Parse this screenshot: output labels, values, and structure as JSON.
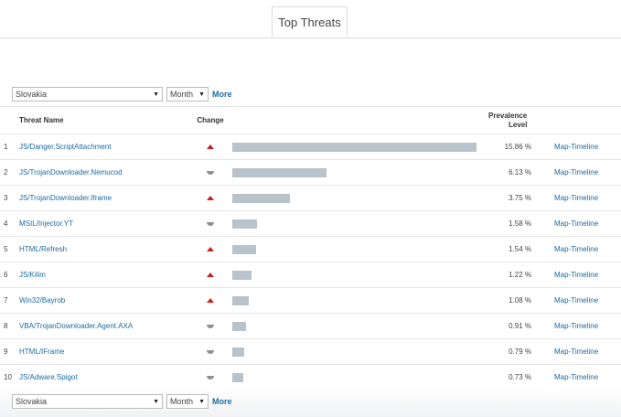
{
  "tabs": {
    "active_label": "Top Threats"
  },
  "filters": {
    "country": "Slovakia",
    "period": "Month",
    "more_label": "More"
  },
  "table": {
    "headers": {
      "name": "Threat Name",
      "change": "Change",
      "prevalence_line1": "Prevalence",
      "prevalence_line2": "Level"
    },
    "max_prevalence": 15.86,
    "rows": [
      {
        "rank": "1",
        "name": "JS/Danger.ScriptAttachment",
        "change": "up",
        "prevalence": 15.86,
        "pct": "15.86 %",
        "link": "Map-Timeline"
      },
      {
        "rank": "2",
        "name": "JS/TrojanDownloader.Nemucod",
        "change": "down",
        "prevalence": 6.13,
        "pct": "6.13 %",
        "link": "Map-Timeline"
      },
      {
        "rank": "3",
        "name": "JS/TrojanDownloader.Iframe",
        "change": "up",
        "prevalence": 3.75,
        "pct": "3.75 %",
        "link": "Map-Timeline"
      },
      {
        "rank": "4",
        "name": "MSIL/Injector.YT",
        "change": "down",
        "prevalence": 1.58,
        "pct": "1.58 %",
        "link": "Map-Timeline"
      },
      {
        "rank": "5",
        "name": "HTML/Refresh",
        "change": "up",
        "prevalence": 1.54,
        "pct": "1.54 %",
        "link": "Map-Timeline"
      },
      {
        "rank": "6",
        "name": "JS/Kilim",
        "change": "up",
        "prevalence": 1.22,
        "pct": "1.22 %",
        "link": "Map-Timeline"
      },
      {
        "rank": "7",
        "name": "Win32/Bayrob",
        "change": "up",
        "prevalence": 1.08,
        "pct": "1.08 %",
        "link": "Map-Timeline"
      },
      {
        "rank": "8",
        "name": "VBA/TrojanDownloader.Agent.AXA",
        "change": "down",
        "prevalence": 0.91,
        "pct": "0.91 %",
        "link": "Map-Timeline"
      },
      {
        "rank": "9",
        "name": "HTML/IFrame",
        "change": "down",
        "prevalence": 0.79,
        "pct": "0.79 %",
        "link": "Map-Timeline"
      },
      {
        "rank": "10",
        "name": "JS/Adware.Spigot",
        "change": "down",
        "prevalence": 0.73,
        "pct": "0.73 %",
        "link": "Map-Timeline"
      }
    ]
  },
  "colors": {
    "link": "#1b6aa5",
    "up": "#cc1f1f",
    "down": "#909090",
    "bar": "#b8c3cc"
  },
  "icons": {
    "up": "triangle-up-icon",
    "down": "triangle-down-icon",
    "caret": "caret-down-icon"
  }
}
